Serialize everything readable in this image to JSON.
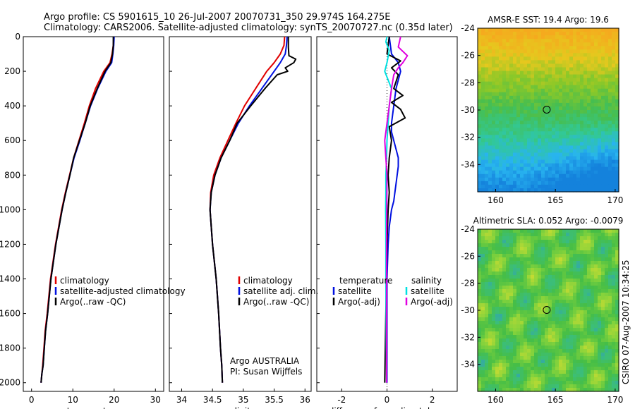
{
  "title_line1": "Argo profile: CS 5901615_10 26-Jul-2007 20070731_350 29.974S 164.275E",
  "title_line2": "Climatology: CARS2006. Satellite-adjusted climatology: synTS_20070727.nc (0.35d later)",
  "side_text": "CSIRO 07-Aug-2007 10:34:25",
  "colors": {
    "clim": "#e00000",
    "sat": "#0010e0",
    "argo": "#000000",
    "sat_sal": "#00e0e0",
    "argo_sal": "#e000e0"
  },
  "chart_data": [
    {
      "type": "line",
      "name": "temperature",
      "xlabel": "temperature",
      "ylabel": "",
      "xlim": [
        -2,
        32
      ],
      "ylim": [
        0,
        2050
      ],
      "xticks": [
        0,
        10,
        20,
        30
      ],
      "yticks": [
        0,
        200,
        400,
        600,
        800,
        1000,
        1200,
        1400,
        1600,
        1800,
        2000
      ],
      "legend": [
        "climatology",
        "satellite-adjusted climatology",
        "Argo(..raw -QC)"
      ],
      "series": [
        {
          "name": "climatology",
          "color": "clim",
          "x": [
            19.9,
            19.8,
            19.5,
            19.0,
            17.5,
            15.5,
            14.0,
            12.8,
            11.5,
            10.2,
            9.2,
            8.2,
            7.3,
            5.8,
            4.6,
            3.8,
            3.3,
            3.0,
            2.7,
            2.5,
            2.3
          ],
          "y": [
            0,
            50,
            100,
            150,
            200,
            300,
            400,
            500,
            600,
            700,
            800,
            900,
            1000,
            1200,
            1400,
            1600,
            1700,
            1800,
            1900,
            1950,
            2000
          ]
        },
        {
          "name": "satellite-adjusted climatology",
          "color": "sat",
          "x": [
            20.0,
            19.9,
            19.7,
            19.4,
            18.0,
            16.0,
            14.3,
            13.0,
            11.7,
            10.3,
            9.3,
            8.3,
            7.4,
            5.9,
            4.7,
            3.9,
            3.4,
            3.1,
            2.8,
            2.5,
            2.3
          ],
          "y": [
            0,
            50,
            100,
            150,
            200,
            300,
            400,
            500,
            600,
            700,
            800,
            900,
            1000,
            1200,
            1400,
            1600,
            1700,
            1800,
            1900,
            1950,
            2000
          ]
        },
        {
          "name": "Argo(..raw -QC)",
          "color": "argo",
          "x": [
            19.8,
            19.8,
            19.6,
            19.2,
            17.8,
            15.9,
            14.2,
            13.0,
            11.6,
            10.2,
            9.3,
            8.3,
            7.4,
            5.9,
            4.7,
            3.9,
            3.4,
            3.1,
            2.8,
            2.5,
            2.3
          ],
          "y": [
            0,
            50,
            100,
            150,
            200,
            300,
            400,
            500,
            600,
            700,
            800,
            900,
            1000,
            1200,
            1400,
            1600,
            1700,
            1800,
            1900,
            1950,
            2000
          ]
        }
      ]
    },
    {
      "type": "line",
      "name": "salinity",
      "xlabel": "salinity",
      "ylabel": "",
      "xlim": [
        33.8,
        36.1
      ],
      "ylim": [
        0,
        2050
      ],
      "xticks": [
        34,
        34.5,
        35,
        35.5,
        36
      ],
      "legend": [
        "climatology",
        "satellite adj. clim.",
        "Argo(..raw -QC)"
      ],
      "annotations": [
        "Argo AUSTRALIA",
        "PI: Susan Wijffels"
      ],
      "series": [
        {
          "name": "climatology",
          "color": "clim",
          "x": [
            35.67,
            35.66,
            35.6,
            35.5,
            35.38,
            35.2,
            35.02,
            34.88,
            34.75,
            34.62,
            34.52,
            34.47,
            34.46,
            34.5,
            34.56,
            34.6,
            34.63,
            34.65,
            34.66
          ],
          "y": [
            0,
            50,
            100,
            150,
            200,
            300,
            400,
            500,
            600,
            700,
            800,
            900,
            1000,
            1200,
            1400,
            1600,
            1800,
            1900,
            2000
          ]
        },
        {
          "name": "satellite adj. clim.",
          "color": "sat",
          "x": [
            35.71,
            35.7,
            35.68,
            35.6,
            35.5,
            35.3,
            35.1,
            34.92,
            34.78,
            34.64,
            34.54,
            34.48,
            34.46,
            34.5,
            34.56,
            34.6,
            34.63,
            34.65,
            34.66
          ],
          "y": [
            0,
            50,
            100,
            150,
            200,
            300,
            400,
            500,
            600,
            700,
            800,
            900,
            1000,
            1200,
            1400,
            1600,
            1800,
            1900,
            2000
          ]
        },
        {
          "name": "Argo(..raw -QC)",
          "color": "argo",
          "x": [
            35.73,
            35.73,
            35.74,
            35.85,
            35.82,
            35.68,
            35.72,
            35.55,
            35.35,
            35.12,
            34.9,
            34.78,
            34.64,
            34.54,
            34.48,
            34.46,
            34.5,
            34.56,
            34.6,
            34.63,
            34.65,
            34.66
          ],
          "y": [
            0,
            60,
            110,
            130,
            150,
            180,
            200,
            220,
            300,
            400,
            500,
            600,
            700,
            800,
            900,
            1000,
            1200,
            1400,
            1600,
            1800,
            1900,
            2000
          ]
        }
      ]
    },
    {
      "type": "line",
      "name": "difference",
      "xlabel": "difference from climatology",
      "ylabel": "",
      "xlim": [
        -3.1,
        3.1
      ],
      "ylim": [
        0,
        2050
      ],
      "xticks": [
        -2,
        0,
        2
      ],
      "legend_left_title": "temperature",
      "legend_right_title": "salinity",
      "legend": [
        "satellite",
        "Argo(-adj)",
        "satellite",
        "Argo(-adj)"
      ],
      "series": [
        {
          "name": "satellite",
          "color": "sat",
          "x": [
            0.1,
            0.15,
            0.2,
            0.5,
            0.6,
            0.4,
            0.3,
            0.25,
            0.2,
            0.2,
            0.3,
            0.4,
            0.5,
            0.5,
            0.45,
            0.4,
            0.35,
            0.3,
            0.2,
            0.1,
            0.05,
            0.0,
            0.0,
            0.0,
            0.0,
            0.0
          ],
          "y": [
            0,
            50,
            100,
            150,
            200,
            300,
            400,
            450,
            500,
            550,
            600,
            650,
            700,
            750,
            800,
            850,
            900,
            950,
            1000,
            1100,
            1200,
            1400,
            1600,
            1800,
            1900,
            2000
          ]
        },
        {
          "name": "Argo(-adj)",
          "color": "argo",
          "x": [
            0.1,
            0.0,
            0.6,
            0.2,
            0.5,
            0.3,
            0.7,
            0.2,
            0.6,
            0.8,
            0.1,
            0.2,
            0.1,
            0.05,
            0.1,
            0.05,
            0.0,
            -0.05,
            -0.1
          ],
          "y": [
            0,
            100,
            140,
            180,
            220,
            300,
            340,
            380,
            420,
            470,
            520,
            600,
            700,
            800,
            900,
            1000,
            1200,
            1600,
            2000
          ]
        },
        {
          "name": "satellite",
          "color": "sat_sal",
          "x": [
            0.0,
            -0.05,
            0.1,
            0.0,
            -0.1,
            0.2,
            0.1,
            0.05,
            0.0,
            -0.02,
            -0.05,
            -0.05,
            -0.06,
            -0.05,
            -0.05,
            -0.04,
            -0.03,
            -0.02,
            -0.02
          ],
          "y": [
            0,
            30,
            80,
            150,
            200,
            300,
            400,
            500,
            600,
            700,
            800,
            900,
            1000,
            1200,
            1400,
            1600,
            1800,
            1900,
            2000
          ]
        },
        {
          "name": "Argo(-adj)",
          "color": "argo_sal",
          "x": [
            0.6,
            0.5,
            0.9,
            0.7,
            0.5,
            0.3,
            0.2,
            0.1,
            0.0,
            -0.1,
            -0.05,
            0.0,
            -0.02,
            -0.02,
            -0.02
          ],
          "y": [
            0,
            60,
            110,
            150,
            180,
            220,
            300,
            400,
            500,
            600,
            700,
            800,
            1200,
            1600,
            2000
          ]
        }
      ]
    },
    {
      "type": "heatmap",
      "name": "sst_map",
      "title": "AMSR-E SST: 19.4 Argo: 19.6",
      "xlim": [
        158.5,
        170.3
      ],
      "ylim": [
        -36,
        -24
      ],
      "xticks": [
        160,
        165,
        170
      ],
      "yticks": [
        -24,
        -26,
        -28,
        -30,
        -32,
        -34
      ],
      "marker": {
        "x": 164.275,
        "y": -29.974
      }
    },
    {
      "type": "heatmap",
      "name": "sla_map",
      "title": "Altimetric SLA: 0.052 Argo: -0.0079",
      "xlim": [
        158.5,
        170.3
      ],
      "ylim": [
        -36,
        -24
      ],
      "xticks": [
        160,
        165,
        170
      ],
      "yticks": [
        -24,
        -26,
        -28,
        -30,
        -32,
        -34
      ],
      "marker": {
        "x": 164.275,
        "y": -29.974
      }
    }
  ]
}
